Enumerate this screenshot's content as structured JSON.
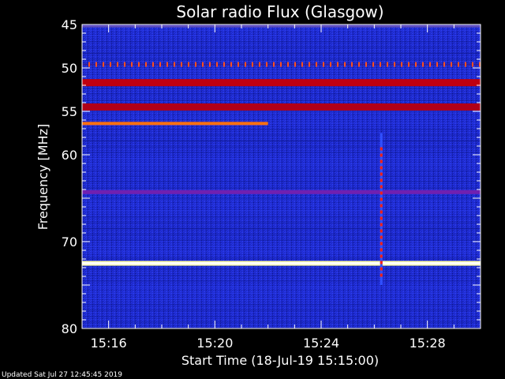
{
  "chart_data": {
    "type": "heatmap",
    "title": "Solar radio Flux (Glasgow)",
    "xlabel": "Start Time (18-Jul-19 15:15:00)",
    "ylabel": "Frequency [MHz]",
    "xlim": [
      "15:15:00",
      "15:30:00"
    ],
    "ylim": [
      45,
      80
    ],
    "y_axis_inverted": true,
    "x_ticks": [
      "15:16",
      "15:20",
      "15:24",
      "15:28"
    ],
    "x_tick_minutes": [
      16,
      20,
      24,
      28
    ],
    "y_ticks": [
      45,
      50,
      55,
      60,
      65,
      70,
      75,
      80
    ],
    "y_tick_labels": [
      "45",
      "50",
      "55",
      "60",
      "",
      "70",
      "",
      "80"
    ],
    "colormap": [
      "#000060",
      "#0a20c8",
      "#2030ff",
      "#7010a0",
      "#c00010",
      "#ff8020",
      "#ffffc0"
    ],
    "background_color": "#1e2ad0",
    "features": [
      {
        "kind": "band",
        "freq_mhz": 45.2,
        "time_start": "15:15",
        "time_end": "15:30",
        "color": "#6050c0"
      },
      {
        "kind": "dotted_band",
        "freq_mhz": 49.6,
        "time_start": "15:15",
        "time_end": "15:30",
        "color": "#ff5020"
      },
      {
        "kind": "band",
        "freq_mhz": 51.7,
        "time_start": "15:15",
        "time_end": "15:30",
        "color": "#c00010"
      },
      {
        "kind": "band",
        "freq_mhz": 54.5,
        "time_start": "15:15",
        "time_end": "15:30",
        "color": "#b00018"
      },
      {
        "kind": "band",
        "freq_mhz": 56.4,
        "time_start": "15:15",
        "time_end": "15:22",
        "color": "#ff7010"
      },
      {
        "kind": "band",
        "freq_mhz": 64.3,
        "time_start": "15:15",
        "time_end": "15:30",
        "color": "#7020b0"
      },
      {
        "kind": "band",
        "freq_mhz": 72.5,
        "time_start": "15:15",
        "time_end": "15:30",
        "color": "#ffffa0"
      },
      {
        "kind": "burst",
        "time": "15:26:15",
        "freq_start_mhz": 57.5,
        "freq_end_mhz": 75,
        "color": "#ff2010"
      }
    ],
    "grid": false,
    "legend": "none"
  },
  "footer": {
    "updated": "Updated Sat Jul 27 12:45:45 2019"
  }
}
